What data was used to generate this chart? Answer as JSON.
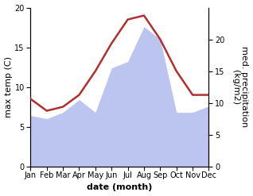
{
  "months": [
    "Jan",
    "Feb",
    "Mar",
    "Apr",
    "May",
    "Jun",
    "Jul",
    "Aug",
    "Sep",
    "Oct",
    "Nov",
    "Dec"
  ],
  "temperature": [
    8.5,
    7.0,
    7.5,
    9.0,
    12.0,
    15.5,
    18.5,
    19.0,
    16.0,
    12.0,
    9.0,
    9.0
  ],
  "precipitation": [
    8.0,
    7.5,
    8.5,
    10.5,
    8.5,
    15.5,
    16.5,
    22.0,
    20.0,
    8.5,
    8.5,
    9.5
  ],
  "temp_color": "#b03030",
  "precip_fill_color": "#bcc5f0",
  "temp_ylim": [
    0,
    20
  ],
  "precip_ylim": [
    0,
    25
  ],
  "temp_yticks": [
    0,
    5,
    10,
    15,
    20
  ],
  "precip_yticks": [
    0,
    5,
    10,
    15,
    20
  ],
  "xlabel": "date (month)",
  "ylabel_left": "max temp (C)",
  "ylabel_right": "med. precipitation\n(kg/m2)",
  "xlabel_fontsize": 8,
  "ylabel_fontsize": 8,
  "tick_fontsize": 7,
  "line_width": 1.8
}
